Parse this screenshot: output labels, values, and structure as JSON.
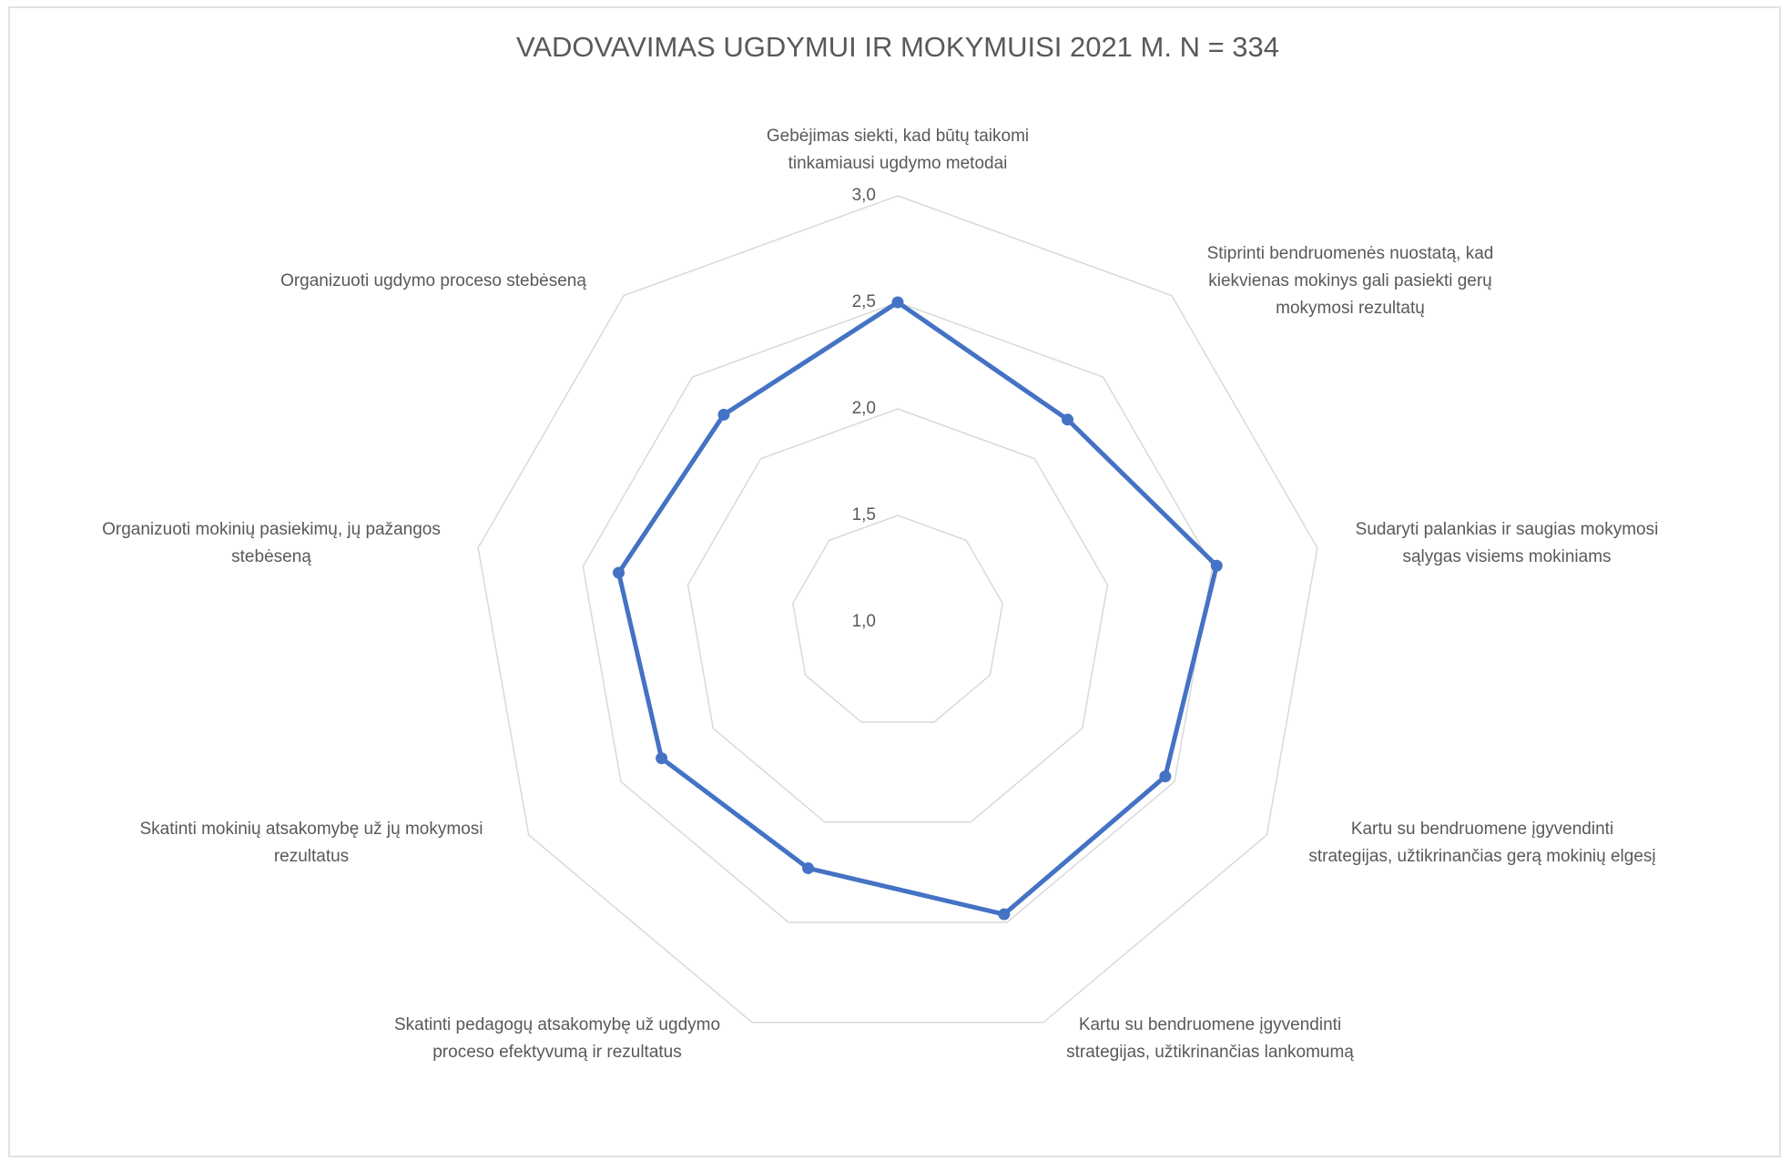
{
  "chart_data": {
    "type": "radar",
    "title": "VADOVAVIMAS UGDYMUI IR MOKYMUISI 2021 M. N = 334",
    "categories": [
      [
        "Gebėjimas siekti, kad būtų taikomi",
        "tinkamiausi ugdymo metodai"
      ],
      [
        "Stiprinti bendruomenės nuostatą, kad",
        "kiekvienas mokinys gali pasiekti gerų",
        "mokymosi rezultatų"
      ],
      [
        "Sudaryti palankias ir saugias mokymosi",
        "sąlygas visiems mokiniams"
      ],
      [
        "Kartu su bendruomene įgyvendinti",
        "strategijas, užtikrinančias gerą mokinių elgesį"
      ],
      [
        "Kartu su bendruomene įgyvendinti",
        "strategijas, užtikrinančias lankomumą"
      ],
      [
        "Skatinti pedagogų atsakomybę už ugdymo",
        "proceso efektyvumą ir rezultatus"
      ],
      [
        "Skatinti mokinių atsakomybę už jų mokymosi",
        "rezultatus"
      ],
      [
        "Organizuoti mokinių pasiekimų, jų pažangos",
        "stebėseną"
      ],
      [
        "Organizuoti ugdymo proceso stebėseną"
      ]
    ],
    "values": [
      2.5,
      2.24,
      2.52,
      2.45,
      2.46,
      2.23,
      2.28,
      2.33,
      2.27
    ],
    "color": "#4472c4",
    "rlim": [
      1,
      3
    ],
    "rticks": [
      {
        "value": 1,
        "label": "1,0"
      },
      {
        "value": 1.5,
        "label": "1,5"
      },
      {
        "value": 2,
        "label": "2,0"
      },
      {
        "value": 2.5,
        "label": "2,5"
      },
      {
        "value": 3,
        "label": "3,0"
      }
    ],
    "grid": true
  }
}
